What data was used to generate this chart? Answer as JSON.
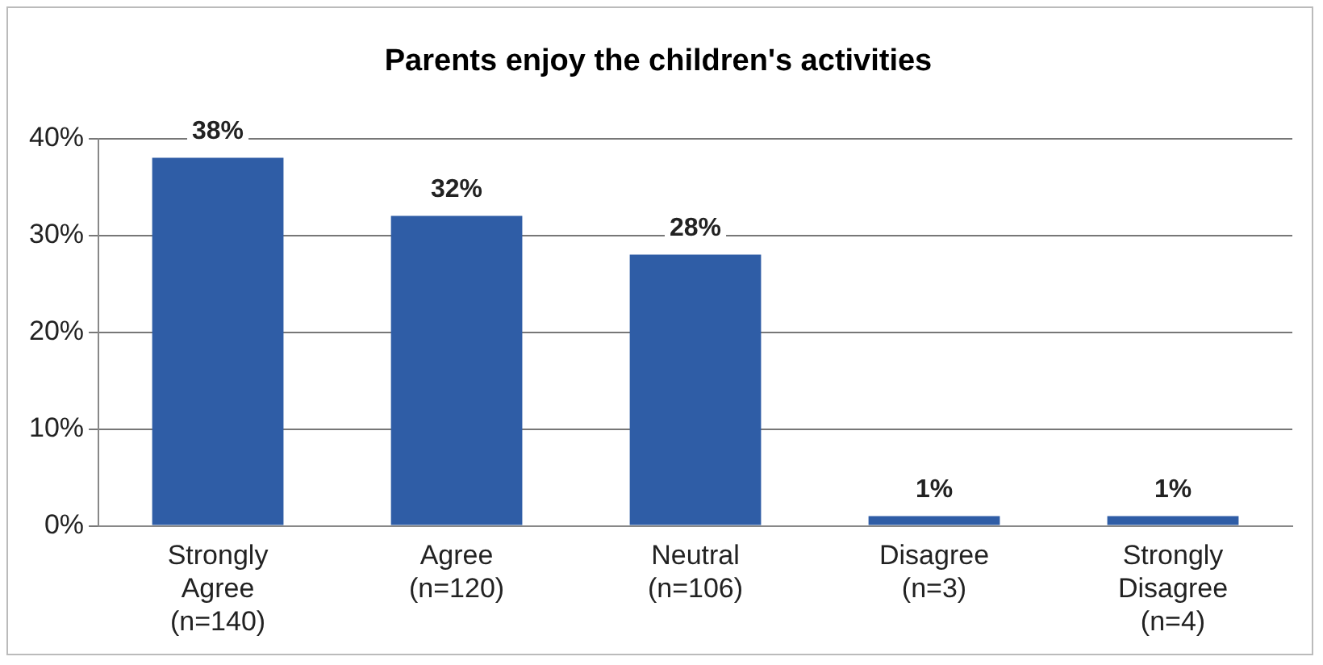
{
  "chart_data": {
    "type": "bar",
    "title": "Parents enjoy the children's activities",
    "categories": [
      "Strongly Agree (n=140)",
      "Agree (n=120)",
      "Neutral (n=106)",
      "Disagree (n=3)",
      "Strongly Disagree (n=4)"
    ],
    "values": [
      38,
      32,
      28,
      1,
      1
    ],
    "value_labels": [
      "38%",
      "32%",
      "28%",
      "1%",
      "1%"
    ],
    "color": "#2f5da6",
    "ylim": [
      0,
      40
    ],
    "yticks": [
      {
        "value": 0,
        "label": "0%"
      },
      {
        "value": 10,
        "label": "10%"
      },
      {
        "value": 20,
        "label": "20%"
      },
      {
        "value": 30,
        "label": "30%"
      },
      {
        "value": 40,
        "label": "40%"
      }
    ],
    "grid": "y",
    "legend": false
  }
}
